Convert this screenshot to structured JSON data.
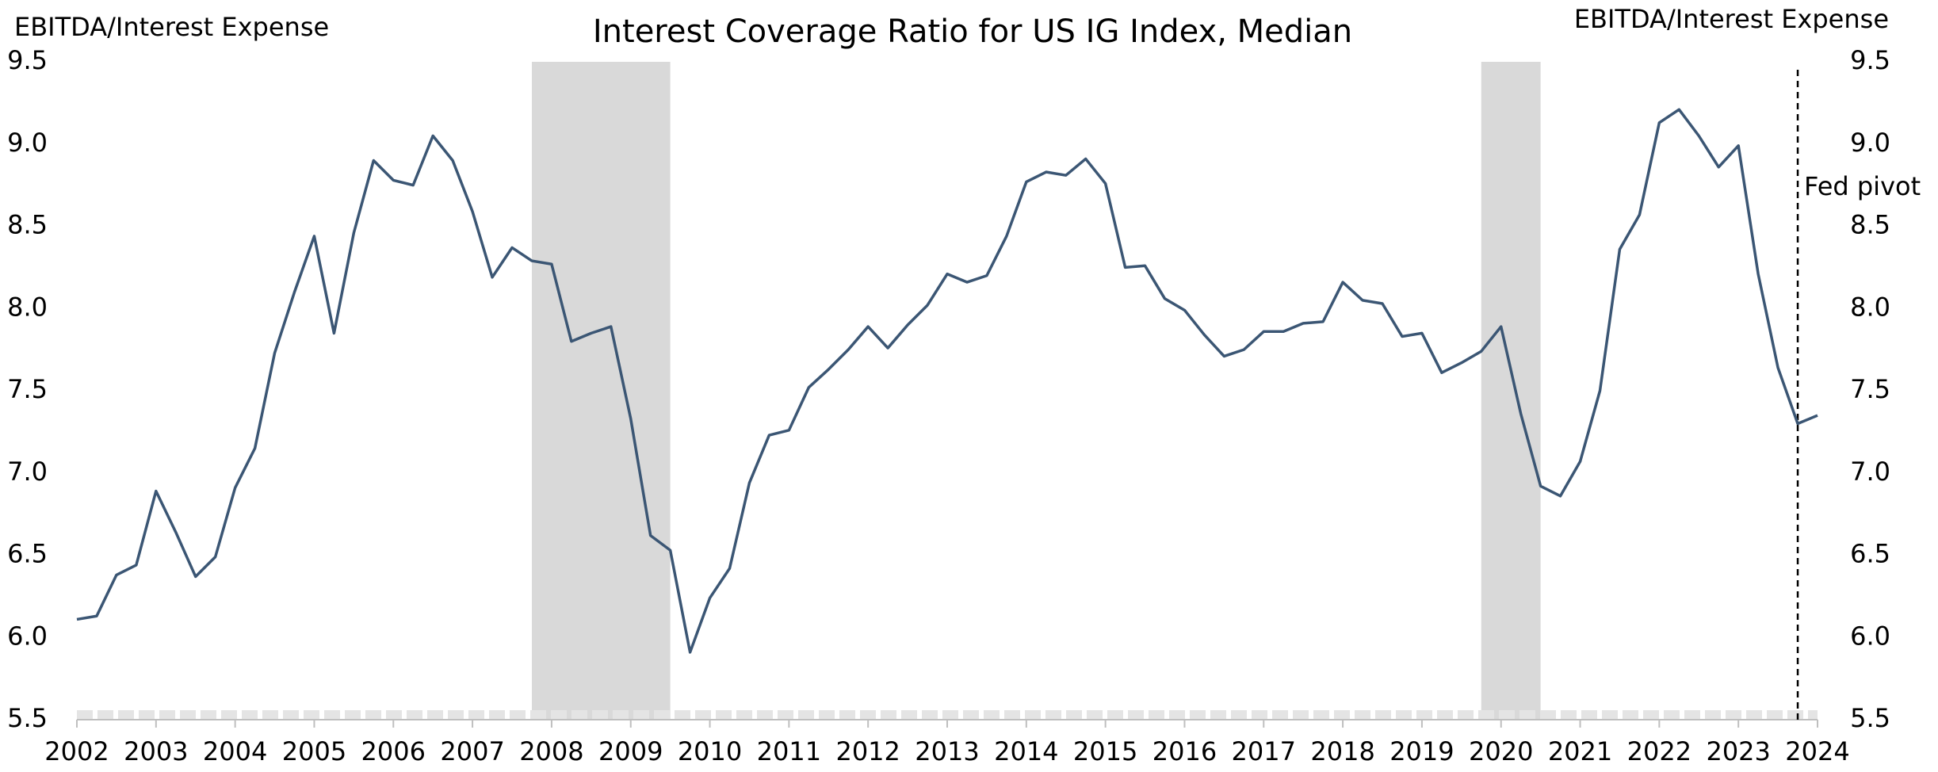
{
  "chart_data": {
    "type": "line",
    "title": "Interest Coverage Ratio for US IG Index, Median",
    "y_label": "EBITDA/Interest Expense",
    "y2_label": "EBITDA/Interest Expense",
    "xlim": [
      2002,
      2024
    ],
    "xticks": [
      2002,
      2003,
      2004,
      2005,
      2006,
      2007,
      2008,
      2009,
      2010,
      2011,
      2012,
      2013,
      2014,
      2015,
      2016,
      2017,
      2018,
      2019,
      2020,
      2021,
      2022,
      2023,
      2024
    ],
    "ylim": [
      5.5,
      9.5
    ],
    "yticks": [
      5.5,
      {
        "value": 6,
        "label": "6.0"
      },
      6.5,
      {
        "value": 7,
        "label": "7.0"
      },
      7.5,
      {
        "value": 8,
        "label": "8.0"
      },
      8.5,
      {
        "value": 9,
        "label": "9.0"
      },
      9.5
    ],
    "y2lim": [
      5.5,
      9.5
    ],
    "y2ticks": [
      5.5,
      {
        "value": 6,
        "label": "6.0"
      },
      6.5,
      {
        "value": 7,
        "label": "7.0"
      },
      7.5,
      {
        "value": 8,
        "label": "8.0"
      },
      8.5,
      {
        "value": 9,
        "label": "9.0"
      },
      9.5
    ],
    "grid": false,
    "recessions": [
      [
        2007.75,
        2009.5
      ],
      [
        2019.75,
        2020.5
      ]
    ],
    "recession_color": "#d9d9d9",
    "annotation": {
      "text": "Fed pivot",
      "x": 2023.75
    },
    "series": [
      {
        "color": "#3b5674",
        "x": [
          2002,
          2002.25,
          2002.5,
          2002.75,
          2003,
          2003.25,
          2003.5,
          2003.75,
          2004,
          2004.25,
          2004.5,
          2004.75,
          2005,
          2005.25,
          2005.5,
          2005.75,
          2006,
          2006.25,
          2006.5,
          2006.75,
          2007,
          2007.25,
          2007.5,
          2007.75,
          2008,
          2008.25,
          2008.5,
          2008.75,
          2009,
          2009.25,
          2009.5,
          2009.75,
          2010,
          2010.25,
          2010.5,
          2010.75,
          2011,
          2011.25,
          2011.5,
          2011.75,
          2012,
          2012.25,
          2012.5,
          2012.75,
          2013,
          2013.25,
          2013.5,
          2013.75,
          2014,
          2014.25,
          2014.5,
          2014.75,
          2015,
          2015.25,
          2015.5,
          2015.75,
          2016,
          2016.25,
          2016.5,
          2016.75,
          2017,
          2017.25,
          2017.5,
          2017.75,
          2018,
          2018.25,
          2018.5,
          2018.75,
          2019,
          2019.25,
          2019.5,
          2019.75,
          2020,
          2020.25,
          2020.5,
          2020.75,
          2021,
          2021.25,
          2021.5,
          2021.75,
          2022,
          2022.25,
          2022.5,
          2022.75,
          2023,
          2023.25,
          2023.5,
          2023.75,
          2024
        ],
        "values": [
          6.11,
          6.13,
          6.38,
          6.44,
          6.89,
          6.64,
          6.37,
          6.49,
          6.91,
          7.15,
          7.73,
          8.1,
          8.44,
          7.85,
          8.46,
          8.9,
          8.78,
          8.75,
          9.05,
          8.9,
          8.59,
          8.19,
          8.37,
          8.29,
          8.27,
          7.8,
          7.85,
          7.89,
          7.33,
          6.62,
          6.53,
          5.91,
          6.24,
          6.42,
          6.94,
          7.23,
          7.26,
          7.52,
          7.63,
          7.75,
          7.89,
          7.76,
          7.9,
          8.02,
          8.21,
          8.16,
          8.2,
          8.44,
          8.77,
          8.83,
          8.81,
          8.91,
          8.76,
          8.25,
          8.26,
          8.06,
          7.99,
          7.84,
          7.71,
          7.75,
          7.86,
          7.86,
          7.91,
          7.92,
          8.16,
          8.05,
          8.03,
          7.83,
          7.85,
          7.61,
          7.67,
          7.74,
          7.89,
          7.36,
          6.92,
          6.86,
          7.07,
          7.5,
          8.36,
          8.57,
          9.13,
          9.21,
          9.05,
          8.86,
          8.99,
          8.21,
          7.64,
          7.3,
          7.35
        ]
      }
    ]
  }
}
